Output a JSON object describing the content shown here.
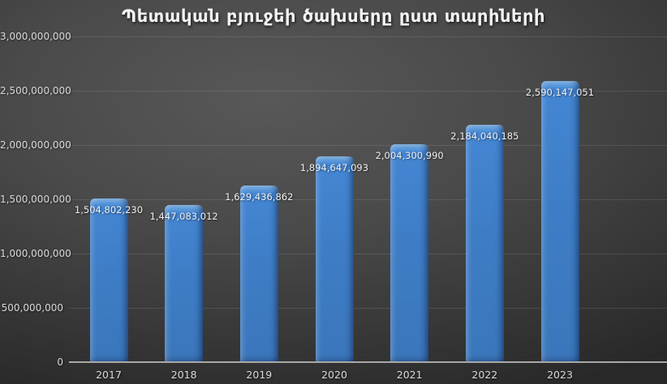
{
  "chart_data": {
    "type": "bar",
    "title": "Պետական բյուջեի ծախսերը ըստ տարիների",
    "xlabel": "",
    "ylabel": "",
    "categories": [
      "2017",
      "2018",
      "2019",
      "2020",
      "2021",
      "2022",
      "2023"
    ],
    "values": [
      1504802230,
      1447083012,
      1629436862,
      1894647093,
      2004300990,
      2184040185,
      2590147051
    ],
    "data_labels": [
      "1,504,802,230",
      "1,447,083,012",
      "1,629,436,862",
      "1,894,647,093",
      "2,004,300,990",
      "2,184,040,185",
      "2,590,147,051"
    ],
    "ylim": [
      0,
      3000000000
    ],
    "yticks": [
      {
        "value": 0,
        "label": "0"
      },
      {
        "value": 500000000,
        "label": "500,000,000"
      },
      {
        "value": 1000000000,
        "label": "1,000,000,000"
      },
      {
        "value": 1500000000,
        "label": "1,500,000,000"
      },
      {
        "value": 2000000000,
        "label": "2,000,000,000"
      },
      {
        "value": 2500000000,
        "label": "2,500,000,000"
      },
      {
        "value": 3000000000,
        "label": "3,000,000,000"
      }
    ],
    "grid": true,
    "legend": false,
    "data_label_position": "inside-end"
  },
  "colors": {
    "background_light": "#585858",
    "background_dark": "#282828",
    "bar_fill": "#3e7dc6",
    "bar_highlight": "#8ebde9",
    "bar_shadow_edge": "#2e62a2",
    "gridline": "rgba(255,255,255,0.11)",
    "axis_line": "#a8a8a8",
    "title_text": "#f2f2f2",
    "tick_text": "#d9d9d9",
    "data_label_text": "#efefef"
  }
}
